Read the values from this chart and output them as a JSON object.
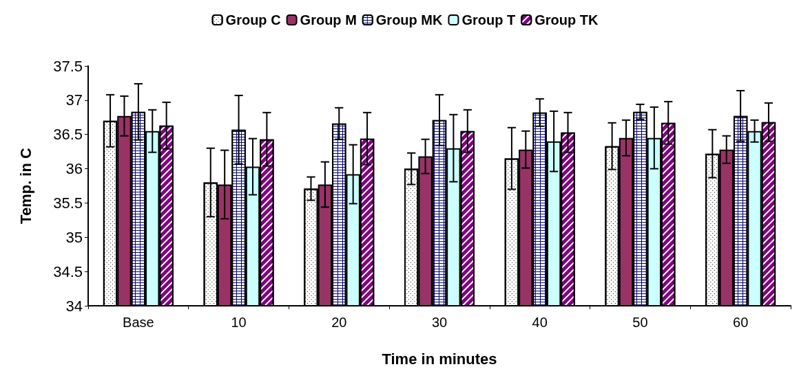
{
  "chart_data": {
    "type": "bar",
    "xlabel": "Time in minutes",
    "ylabel": "Temp. in C",
    "categories": [
      "Base",
      "10",
      "20",
      "30",
      "40",
      "50",
      "60"
    ],
    "ylim": [
      34,
      37.5
    ],
    "yticks": [
      34,
      34.5,
      35,
      35.5,
      36,
      36.5,
      37,
      37.5
    ],
    "grid": false,
    "legend": "top",
    "series": [
      {
        "name": "Group C",
        "color": "#ffffff",
        "values": [
          36.7,
          35.8,
          35.71,
          36.0,
          36.15,
          36.33,
          36.22
        ],
        "errors": [
          0.38,
          0.5,
          0.17,
          0.23,
          0.45,
          0.34,
          0.35
        ]
      },
      {
        "name": "Group M",
        "color": "#993366",
        "values": [
          36.77,
          35.77,
          35.77,
          36.18,
          36.28,
          36.45,
          36.28
        ],
        "errors": [
          0.29,
          0.5,
          0.33,
          0.25,
          0.27,
          0.26,
          0.2
        ]
      },
      {
        "name": "Group MK",
        "color": "#000080",
        "values": [
          36.83,
          36.57,
          36.66,
          36.71,
          36.82,
          36.83,
          36.77
        ],
        "errors": [
          0.41,
          0.5,
          0.23,
          0.37,
          0.2,
          0.11,
          0.37
        ]
      },
      {
        "name": "Group T",
        "color": "#ccffff",
        "values": [
          36.55,
          36.03,
          35.92,
          36.3,
          36.4,
          36.45,
          36.55
        ],
        "errors": [
          0.31,
          0.41,
          0.43,
          0.49,
          0.44,
          0.45,
          0.16
        ]
      },
      {
        "name": "Group TK",
        "color": "#800080",
        "values": [
          36.63,
          36.43,
          36.44,
          36.55,
          36.53,
          36.67,
          36.68
        ],
        "errors": [
          0.34,
          0.39,
          0.38,
          0.31,
          0.29,
          0.31,
          0.28
        ]
      }
    ]
  }
}
